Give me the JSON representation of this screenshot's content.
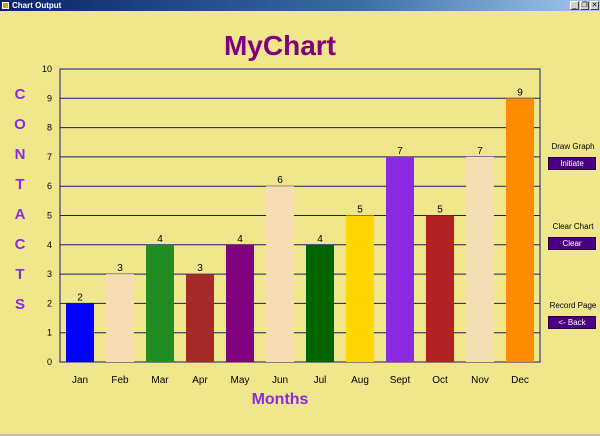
{
  "window": {
    "title": "Chart Output",
    "minimize_glyph": "_",
    "restore_glyph": "❐",
    "close_glyph": "✕"
  },
  "chart_title": "MyChart",
  "y_axis_title": [
    "C",
    "O",
    "N",
    "T",
    "A",
    "C",
    "T",
    "S"
  ],
  "x_axis_title": "Months",
  "controls": {
    "draw_label": "Draw Graph",
    "draw_button": "Initiate",
    "clear_label": "Clear Chart",
    "clear_button": "Clear",
    "record_label": "Record Page",
    "back_button": "<- Back"
  },
  "colors": {
    "background": "#f0e68c",
    "title": "#800080",
    "axis_title": "#8a2be2",
    "buttons": "#4b0082"
  },
  "chart_data": {
    "type": "bar",
    "title": "MyChart",
    "xlabel": "Months",
    "ylabel": "CONTACTS",
    "ylim": [
      0,
      10
    ],
    "yticks": [
      0,
      1,
      2,
      3,
      4,
      5,
      6,
      7,
      8,
      9,
      10
    ],
    "grid": true,
    "categories": [
      "Jan",
      "Feb",
      "Mar",
      "Apr",
      "May",
      "Jun",
      "Jul",
      "Aug",
      "Sept",
      "Oct",
      "Nov",
      "Dec"
    ],
    "values": [
      2,
      3,
      4,
      3,
      4,
      6,
      4,
      5,
      7,
      5,
      7,
      9
    ],
    "bar_colors": [
      "#0000ff",
      "#f5deb3",
      "#228b22",
      "#a52a2a",
      "#800080",
      "#f5deb3",
      "#006400",
      "#ffd700",
      "#8a2be2",
      "#b22222",
      "#f5deb3",
      "#ff8c00"
    ]
  }
}
